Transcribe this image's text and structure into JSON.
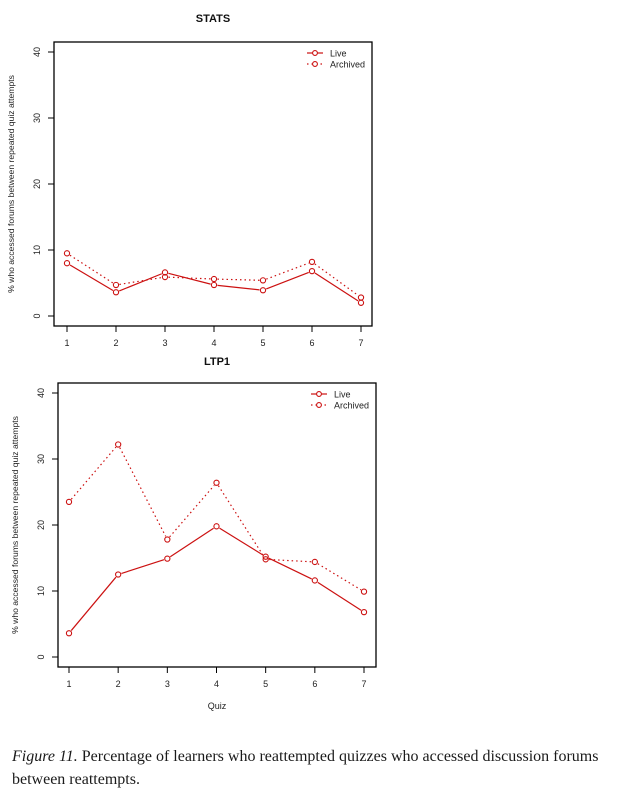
{
  "chart_data": [
    {
      "type": "line",
      "title": "STATS",
      "xlabel": "",
      "ylabel": "% who accessed forums between repeated quiz attempts",
      "x": [
        1,
        2,
        3,
        4,
        5,
        6,
        7
      ],
      "x_tick_labels": [
        "1",
        "2",
        "3",
        "4",
        "5",
        "6",
        "7"
      ],
      "y_ticks": [
        0,
        10,
        20,
        30,
        40
      ],
      "ylim": [
        0,
        40
      ],
      "grid": false,
      "legend_position": "top-right",
      "series": [
        {
          "name": "Live",
          "style": "solid",
          "marker": "open-circle",
          "color": "#cc1111",
          "values": [
            8.0,
            3.6,
            6.6,
            4.7,
            3.9,
            6.8,
            2.0
          ]
        },
        {
          "name": "Archived",
          "style": "dotted",
          "marker": "open-circle",
          "color": "#cc1111",
          "values": [
            9.5,
            4.7,
            5.9,
            5.6,
            5.4,
            8.2,
            2.8
          ]
        }
      ]
    },
    {
      "type": "line",
      "title": "LTP1",
      "xlabel": "Quiz",
      "ylabel": "% who accessed forums between repeated quiz attempts",
      "x": [
        1,
        2,
        3,
        4,
        5,
        6,
        7
      ],
      "x_tick_labels": [
        "1",
        "2",
        "3",
        "4",
        "5",
        "6",
        "7"
      ],
      "y_ticks": [
        0,
        10,
        20,
        30,
        40
      ],
      "ylim": [
        0,
        40
      ],
      "grid": false,
      "legend_position": "top-right",
      "series": [
        {
          "name": "Live",
          "style": "solid",
          "marker": "open-circle",
          "color": "#cc1111",
          "values": [
            3.6,
            12.5,
            14.9,
            19.8,
            15.2,
            11.6,
            6.8
          ]
        },
        {
          "name": "Archived",
          "style": "dotted",
          "marker": "open-circle",
          "color": "#cc1111",
          "values": [
            23.5,
            32.2,
            17.8,
            26.4,
            14.8,
            14.4,
            9.9
          ]
        }
      ]
    }
  ],
  "caption": {
    "label": "Figure 11.",
    "text": " Percentage of learners who reattempted quizzes who accessed discussion forums between reattempts."
  }
}
